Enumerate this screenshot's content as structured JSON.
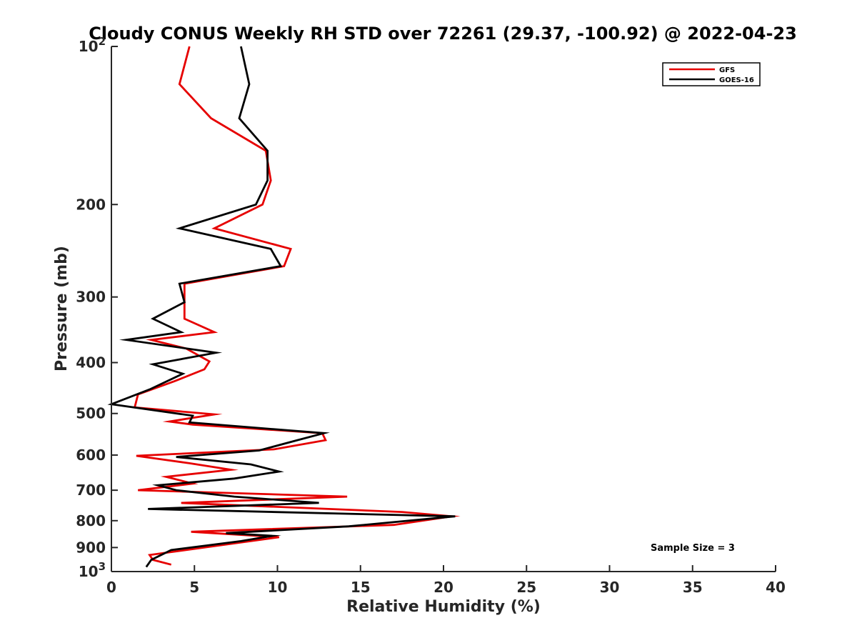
{
  "chart_data": {
    "type": "line",
    "title": "Cloudy CONUS Weekly RH STD over 72261 (29.37, -100.92) @ 2022-04-23",
    "xlabel": "Relative Humidity (%)",
    "ylabel": "Pressure (mb)",
    "xlim": [
      0,
      40
    ],
    "ylim": [
      100,
      1000
    ],
    "y_scale": "log",
    "y_reversed": true,
    "x_ticks": [
      0,
      5,
      10,
      15,
      20,
      25,
      30,
      35,
      40
    ],
    "y_ticks": [
      {
        "value": 100,
        "base": "10",
        "exp": "2"
      },
      {
        "value": 200,
        "label": "200"
      },
      {
        "value": 300,
        "label": "300"
      },
      {
        "value": 400,
        "label": "400"
      },
      {
        "value": 500,
        "label": "500"
      },
      {
        "value": 600,
        "label": "600"
      },
      {
        "value": 700,
        "label": "700"
      },
      {
        "value": 800,
        "label": "800"
      },
      {
        "value": 900,
        "label": "900"
      },
      {
        "value": 1000,
        "base": "10",
        "exp": "3"
      }
    ],
    "legend_position": "top-right",
    "grid": false,
    "series": [
      {
        "name": "GFS",
        "color": "#e60000",
        "points": [
          [
            4.7,
            100
          ],
          [
            4.1,
            118
          ],
          [
            6.0,
            137
          ],
          [
            9.3,
            158
          ],
          [
            9.6,
            180
          ],
          [
            9.1,
            200
          ],
          [
            6.2,
            222
          ],
          [
            10.8,
            243
          ],
          [
            10.4,
            262
          ],
          [
            4.4,
            283
          ],
          [
            4.4,
            307
          ],
          [
            4.4,
            330
          ],
          [
            6.2,
            350
          ],
          [
            2.4,
            362
          ],
          [
            4.5,
            376
          ],
          [
            5.9,
            398
          ],
          [
            5.6,
            412
          ],
          [
            3.8,
            434
          ],
          [
            1.6,
            460
          ],
          [
            1.4,
            487
          ],
          [
            6.2,
            502
          ],
          [
            3.5,
            518
          ],
          [
            4.9,
            525
          ],
          [
            12.7,
            545
          ],
          [
            12.9,
            562
          ],
          [
            9.8,
            585
          ],
          [
            1.5,
            602
          ],
          [
            4.7,
            622
          ],
          [
            7.2,
            640
          ],
          [
            3.3,
            660
          ],
          [
            4.9,
            680
          ],
          [
            1.6,
            700
          ],
          [
            14.2,
            720
          ],
          [
            4.2,
            740
          ],
          [
            17.5,
            770
          ],
          [
            20.5,
            785
          ],
          [
            17.0,
            815
          ],
          [
            4.8,
            840
          ],
          [
            10.1,
            860
          ],
          [
            2.3,
            930
          ],
          [
            2.5,
            950
          ],
          [
            3.6,
            970
          ]
        ]
      },
      {
        "name": "GOES-16",
        "color": "#000000",
        "points": [
          [
            7.8,
            100
          ],
          [
            8.3,
            118
          ],
          [
            7.7,
            137
          ],
          [
            9.4,
            158
          ],
          [
            9.4,
            180
          ],
          [
            8.7,
            200
          ],
          [
            4.1,
            222
          ],
          [
            9.6,
            243
          ],
          [
            10.2,
            262
          ],
          [
            4.1,
            283
          ],
          [
            4.4,
            307
          ],
          [
            2.5,
            330
          ],
          [
            4.2,
            350
          ],
          [
            0.9,
            362
          ],
          [
            6.3,
            383
          ],
          [
            2.5,
            403
          ],
          [
            4.3,
            420
          ],
          [
            2.3,
            450
          ],
          [
            0.0,
            480
          ],
          [
            4.9,
            505
          ],
          [
            4.7,
            520
          ],
          [
            12.8,
            545
          ],
          [
            11.2,
            562
          ],
          [
            8.9,
            588
          ],
          [
            3.9,
            605
          ],
          [
            8.4,
            625
          ],
          [
            10.1,
            645
          ],
          [
            7.4,
            665
          ],
          [
            2.8,
            685
          ],
          [
            3.9,
            700
          ],
          [
            7.4,
            720
          ],
          [
            12.5,
            740
          ],
          [
            2.2,
            760
          ],
          [
            20.7,
            785
          ],
          [
            14.3,
            820
          ],
          [
            6.9,
            845
          ],
          [
            9.7,
            855
          ],
          [
            7.8,
            875
          ],
          [
            3.6,
            910
          ],
          [
            2.4,
            950
          ],
          [
            2.1,
            980
          ]
        ]
      }
    ],
    "annotations": [
      "Sample Size = 3"
    ]
  }
}
